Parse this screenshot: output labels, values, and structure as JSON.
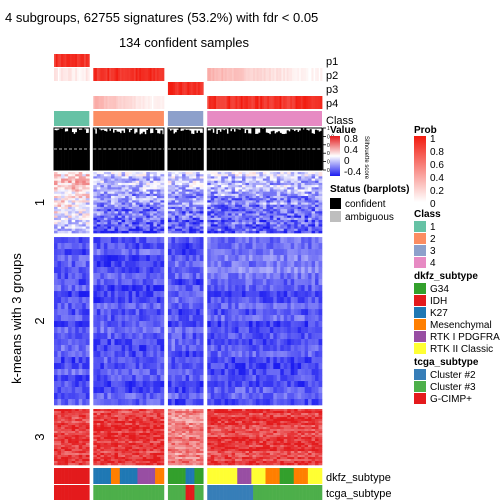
{
  "title": "4 subgroups, 62755 signatures (53.2%) with fdr < 0.05",
  "subtitle": "134 confident samples",
  "chart_data": {
    "type": "heatmap",
    "row_axis_label": "k-means with 3 groups",
    "row_groups": [
      {
        "label": "1",
        "rows": 60
      },
      {
        "label": "2",
        "rows": 165
      },
      {
        "label": "3",
        "rows": 55
      }
    ],
    "column_groups": [
      {
        "class": "1",
        "samples": 20
      },
      {
        "class": "2",
        "samples": 40
      },
      {
        "class": "3",
        "samples": 20
      },
      {
        "class": "4",
        "samples": 65
      }
    ],
    "probability_tracks": [
      "p1",
      "p2",
      "p3",
      "p4"
    ],
    "class_track_label": "Class",
    "silhouette_track": {
      "label": "Silhouette score",
      "ticks": [
        0,
        0.2,
        0.4,
        0.6,
        0.8,
        1
      ],
      "dashed_line": 0.5
    },
    "bottom_tracks": [
      "dkfz_subtype",
      "tcga_subtype"
    ],
    "legends": {
      "value": {
        "title": "Value",
        "ticks": [
          "0.8",
          "0.4",
          "0",
          "-0.4"
        ],
        "high": "#e31a1c",
        "mid": "#ffffff",
        "low": "#1c1cf0"
      },
      "prob": {
        "title": "Prob",
        "ticks": [
          "1",
          "0.8",
          "0.6",
          "0.4",
          "0.2",
          "0"
        ],
        "high": "#f21b0f",
        "low": "#ffffff"
      },
      "status": {
        "title": "Status (barplots)",
        "items": [
          {
            "label": "confident",
            "color": "#000000"
          },
          {
            "label": "ambiguous",
            "color": "#bebebe"
          }
        ]
      },
      "class": {
        "title": "Class",
        "items": [
          {
            "label": "1",
            "color": "#66c2a5"
          },
          {
            "label": "2",
            "color": "#fc8d62"
          },
          {
            "label": "3",
            "color": "#8da0cb"
          },
          {
            "label": "4",
            "color": "#e78ac3"
          }
        ]
      },
      "dkfz_subtype": {
        "title": "dkfz_subtype",
        "items": [
          {
            "label": "G34",
            "color": "#33a02c"
          },
          {
            "label": "IDH",
            "color": "#e31a1c"
          },
          {
            "label": "K27",
            "color": "#1f78b4"
          },
          {
            "label": "Mesenchymal",
            "color": "#ff7f00"
          },
          {
            "label": "RTK I PDGFRA",
            "color": "#984ea3"
          },
          {
            "label": "RTK II Classic",
            "color": "#ffff33"
          }
        ]
      },
      "tcga_subtype": {
        "title": "tcga_subtype",
        "items": [
          {
            "label": "Cluster #2",
            "color": "#377eb8"
          },
          {
            "label": "Cluster #3",
            "color": "#4daf4a"
          },
          {
            "label": "G-CIMP+",
            "color": "#e41a1c"
          }
        ]
      }
    }
  }
}
